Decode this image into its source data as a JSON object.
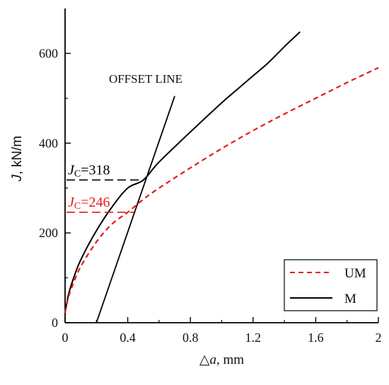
{
  "chart_data": {
    "type": "line",
    "xlabel": "△a, mm",
    "xlabel_parts": {
      "prefix": "△",
      "var": "a",
      "unit": ", mm"
    },
    "ylabel": "J, kN/m",
    "ylabel_parts": {
      "var": "J",
      "unit": ", kN/m"
    },
    "xlim": [
      0,
      2
    ],
    "ylim": [
      0,
      700
    ],
    "xticks": [
      0,
      0.4,
      0.8,
      1.2,
      1.6,
      2
    ],
    "xtick_labels": [
      "0",
      "0.4",
      "0.8",
      "1.2",
      "1.6",
      "2"
    ],
    "yticks": [
      0,
      200,
      400,
      600
    ],
    "ytick_labels": [
      "0",
      "200",
      "400",
      "600"
    ],
    "grid": false,
    "legend_position": "bottom-right",
    "colors": {
      "UM": "#e31a1c",
      "M": "#000000",
      "axes": "#000000",
      "offset_line": "#000000"
    },
    "series": [
      {
        "name": "UM",
        "style": "dashed",
        "color": "#e31a1c",
        "x": [
          0,
          0.02,
          0.05,
          0.1,
          0.2,
          0.3,
          0.4,
          0.5,
          0.6,
          0.8,
          1.0,
          1.2,
          1.4,
          1.6,
          1.8,
          2.0
        ],
        "y": [
          22,
          55,
          85,
          125,
          180,
          220,
          246,
          275,
          300,
          345,
          388,
          428,
          465,
          500,
          535,
          568
        ]
      },
      {
        "name": "M",
        "style": "solid",
        "color": "#000000",
        "x": [
          0,
          0.02,
          0.05,
          0.1,
          0.2,
          0.3,
          0.4,
          0.5,
          0.6,
          0.8,
          1.0,
          1.1,
          1.2,
          1.3,
          1.4,
          1.5
        ],
        "y": [
          22,
          60,
          95,
          140,
          205,
          258,
          300,
          318,
          358,
          425,
          490,
          520,
          550,
          580,
          615,
          648
        ]
      }
    ],
    "offset_line": {
      "label": "OFFSET LINE",
      "x": [
        0.2,
        0.7
      ],
      "y": [
        0,
        505
      ]
    },
    "annotations": [
      {
        "name": "jc-m",
        "var": "J",
        "sub": "C",
        "value_text": "=318",
        "x_from": 0,
        "x_to": 0.5,
        "y": 318,
        "color": "#000000"
      },
      {
        "name": "jc-um",
        "var": "J",
        "sub": "C",
        "value_text": "=246",
        "x_from": 0,
        "x_to": 0.44,
        "y": 246,
        "color": "#e31a1c"
      }
    ],
    "legend": [
      {
        "label": "UM",
        "style": "dashed",
        "color": "#e31a1c"
      },
      {
        "label": "M",
        "style": "solid",
        "color": "#000000"
      }
    ]
  }
}
